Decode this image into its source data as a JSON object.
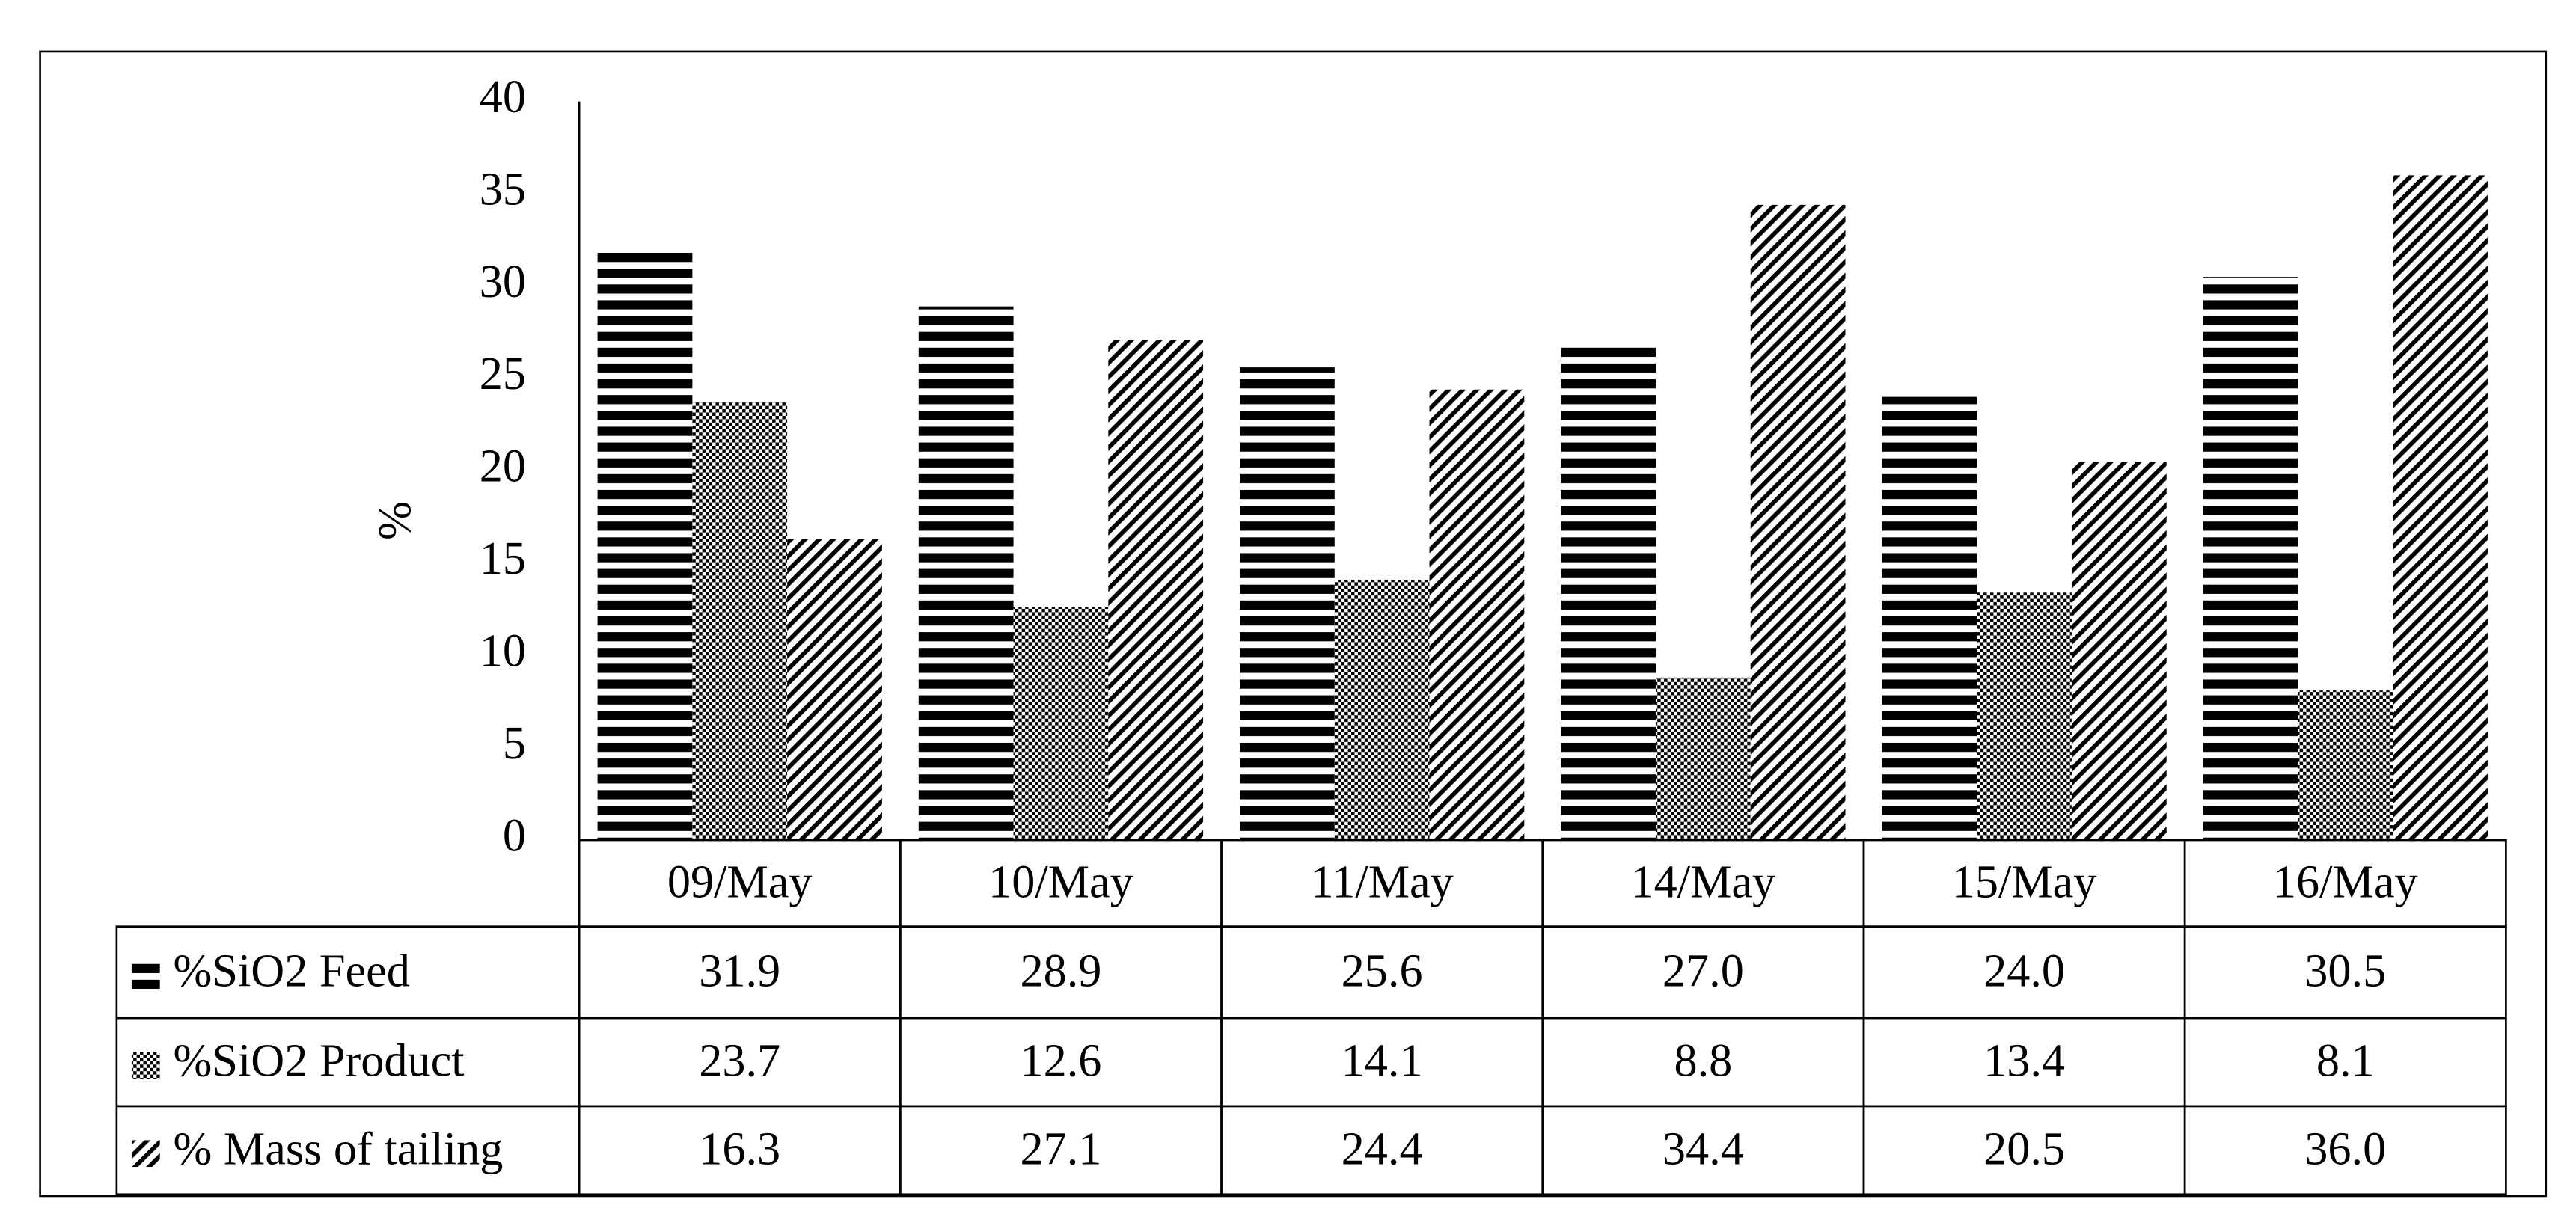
{
  "chart_data": {
    "type": "bar",
    "y_label": "%",
    "categories": [
      "09/May",
      "10/May",
      "11/May",
      "14/May",
      "15/May",
      "16/May"
    ],
    "series": [
      {
        "name": "%SiO2 Feed",
        "pattern": "hstripes",
        "values": [
          31.9,
          28.9,
          25.6,
          27.0,
          24.0,
          30.5
        ],
        "value_labels": [
          "31.9",
          "28.9",
          "25.6",
          "27.0",
          "24.0",
          "30.5"
        ]
      },
      {
        "name": "%SiO2 Product",
        "pattern": "checker",
        "values": [
          23.7,
          12.6,
          14.1,
          8.8,
          13.4,
          8.1
        ],
        "value_labels": [
          "23.7",
          "12.6",
          "14.1",
          "8.8",
          "13.4",
          "8.1"
        ]
      },
      {
        "name": "% Mass of tailing",
        "pattern": "diagonal",
        "values": [
          16.3,
          27.1,
          24.4,
          34.4,
          20.5,
          36.0
        ],
        "value_labels": [
          "16.3",
          "27.1",
          "24.4",
          "34.4",
          "20.5",
          "36.0"
        ]
      }
    ],
    "ylim": [
      0,
      40
    ],
    "yticks": [
      0,
      5,
      10,
      15,
      20,
      25,
      30,
      35,
      40
    ],
    "data_table": true
  }
}
